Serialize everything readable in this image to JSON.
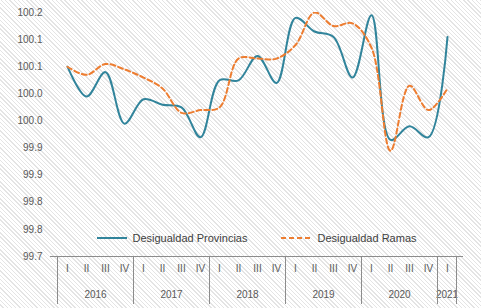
{
  "chart_data": {
    "type": "line",
    "categories": [
      "I",
      "II",
      "III",
      "IV",
      "I",
      "II",
      "III",
      "IV",
      "I",
      "II",
      "III",
      "IV",
      "I",
      "II",
      "III",
      "IV",
      "I",
      "II",
      "III",
      "IV",
      "I"
    ],
    "years": [
      "2016",
      "2016",
      "2016",
      "2016",
      "2017",
      "2017",
      "2017",
      "2017",
      "2018",
      "2018",
      "2018",
      "2018",
      "2019",
      "2019",
      "2019",
      "2019",
      "2020",
      "2020",
      "2020",
      "2020",
      "2021"
    ],
    "series": [
      {
        "name": "Desigualdad Provincias",
        "color": "#31849b",
        "line_style": "solid",
        "values": [
          100.1,
          100.045,
          100.09,
          99.995,
          100.04,
          100.03,
          100.025,
          99.97,
          100.075,
          100.075,
          100.12,
          100.07,
          100.19,
          100.165,
          100.155,
          100.08,
          100.195,
          99.965,
          99.99,
          99.97,
          100.155
        ]
      },
      {
        "name": "Desigualdad Ramas",
        "color": "#ed7d31",
        "line_style": "dashed",
        "values": [
          100.1,
          100.085,
          100.105,
          100.095,
          100.08,
          100.06,
          100.015,
          100.02,
          100.025,
          100.115,
          100.115,
          100.115,
          100.14,
          100.2,
          100.175,
          100.18,
          100.135,
          99.945,
          100.065,
          100.02,
          100.06
        ]
      }
    ],
    "ylim": [
      99.75,
      100.2
    ],
    "yticks": [
      {
        "value": 99.75,
        "label": "99.7"
      },
      {
        "value": 99.8,
        "label": "99.8"
      },
      {
        "value": 99.85,
        "label": "99.8"
      },
      {
        "value": 99.9,
        "label": "99.9"
      },
      {
        "value": 99.95,
        "label": "99.9"
      },
      {
        "value": 100.0,
        "label": "100.0"
      },
      {
        "value": 100.05,
        "label": "100.0"
      },
      {
        "value": 100.1,
        "label": "100.1"
      },
      {
        "value": 100.15,
        "label": "100.1"
      },
      {
        "value": 100.2,
        "label": "100.2"
      }
    ],
    "grid": false,
    "legend": "lower center"
  }
}
